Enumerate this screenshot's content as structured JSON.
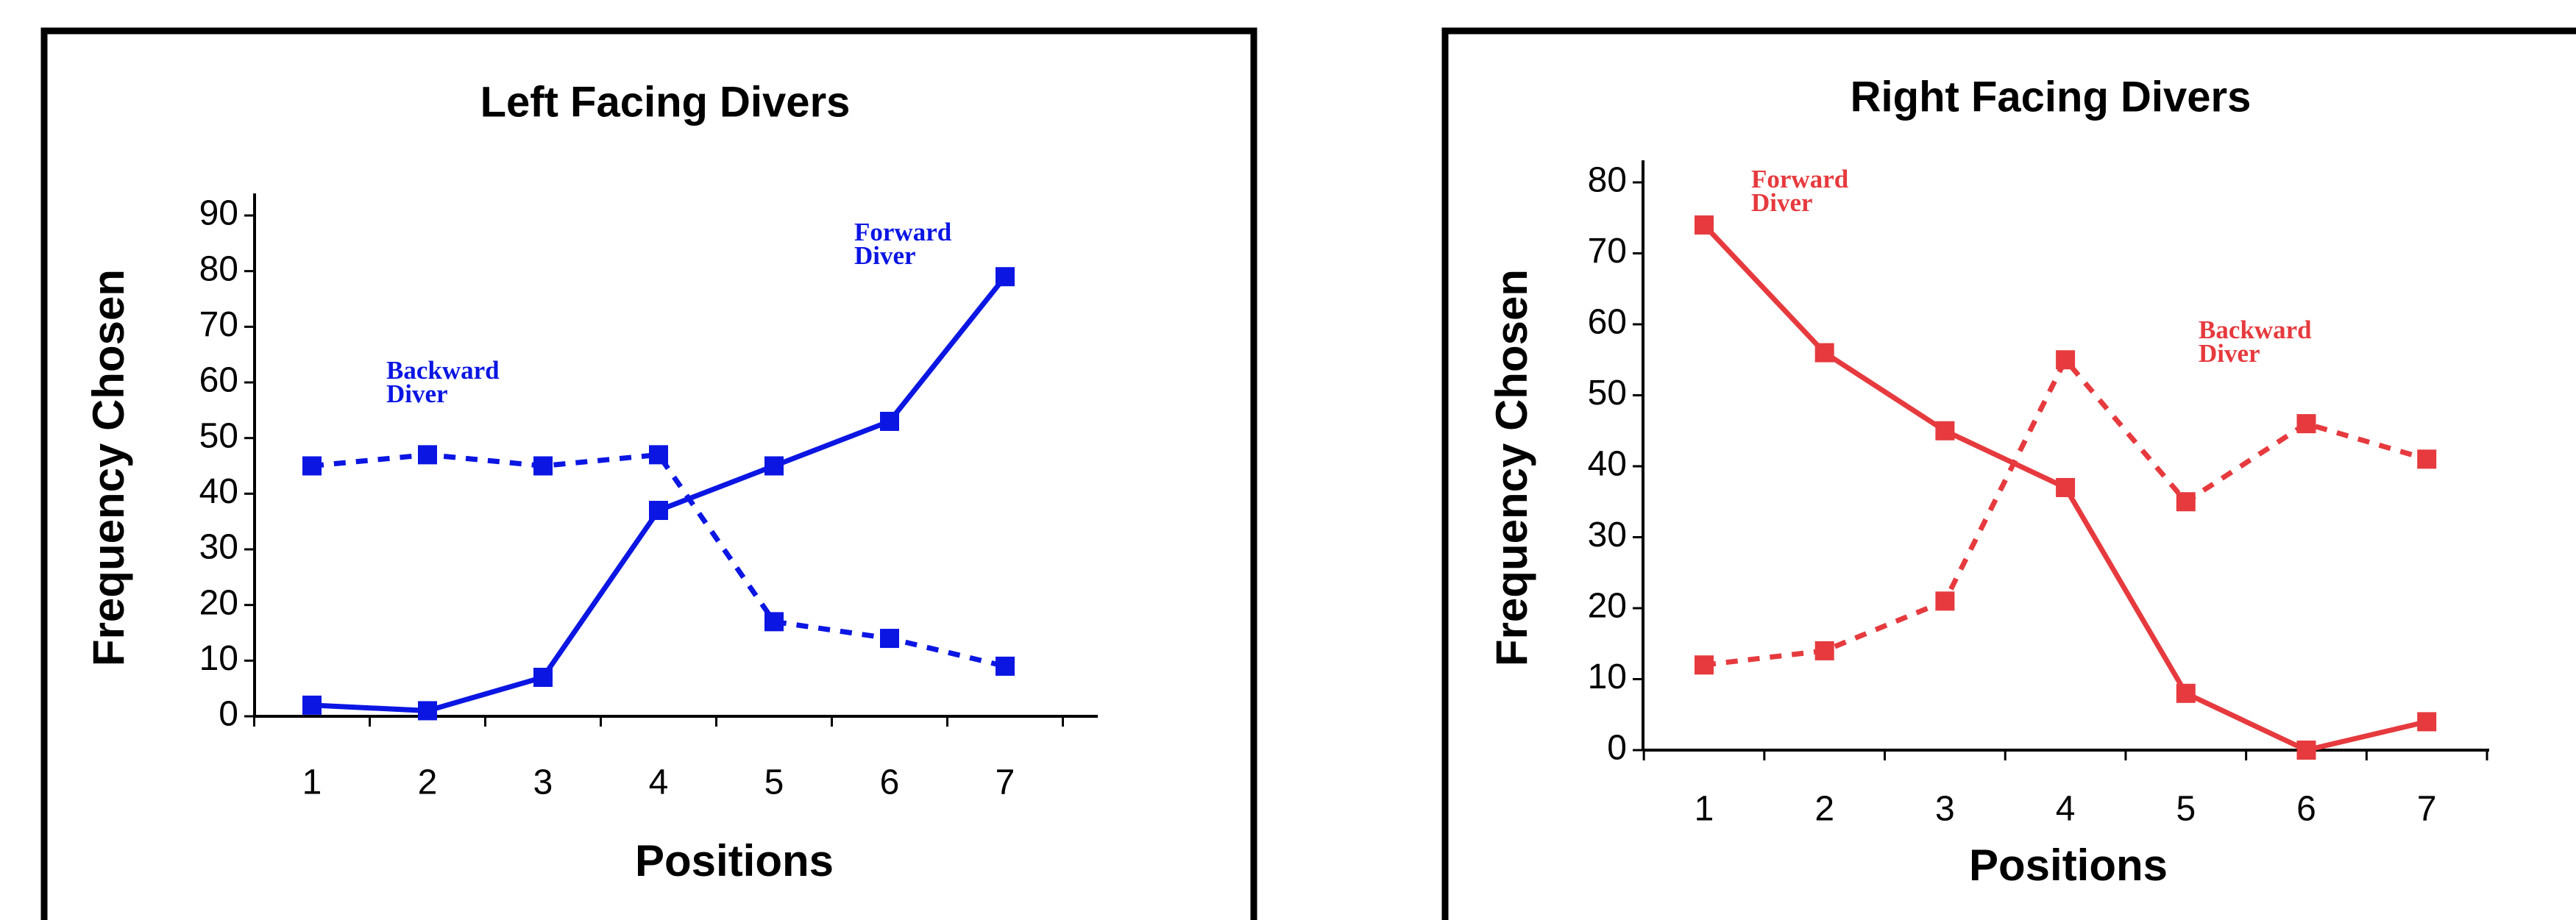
{
  "chart_data": [
    {
      "type": "line",
      "title": "Left Facing Divers",
      "x_label": "Positions",
      "y_label": "Frequency Chosen",
      "categories": [
        "1",
        "2",
        "3",
        "4",
        "5",
        "6",
        "7"
      ],
      "ylim": [
        0,
        90
      ],
      "yticks": [
        0,
        10,
        20,
        30,
        40,
        50,
        60,
        70,
        80,
        90
      ],
      "series": [
        {
          "name": "Forward Diver",
          "color": "#0b16e3",
          "style": "solid",
          "values": [
            2,
            1,
            7,
            37,
            45,
            53,
            79
          ]
        },
        {
          "name": "Backward Diver",
          "color": "#0b16e3",
          "style": "dashed",
          "values": [
            45,
            47,
            45,
            47,
            17,
            14,
            9
          ]
        }
      ]
    },
    {
      "type": "line",
      "title": "Right Facing Divers",
      "x_label": "Positions",
      "y_label": "Frequency Chosen",
      "categories": [
        "1",
        "2",
        "3",
        "4",
        "5",
        "6",
        "7"
      ],
      "ylim": [
        0,
        80
      ],
      "yticks": [
        0,
        10,
        20,
        30,
        40,
        50,
        60,
        70,
        80
      ],
      "series": [
        {
          "name": "Forward Diver",
          "color": "#e63a3e",
          "style": "solid",
          "values": [
            74,
            56,
            45,
            37,
            8,
            0,
            4
          ]
        },
        {
          "name": "Backward Diver",
          "color": "#e63a3e",
          "style": "dashed",
          "values": [
            12,
            14,
            21,
            55,
            35,
            46,
            41
          ]
        }
      ]
    }
  ]
}
